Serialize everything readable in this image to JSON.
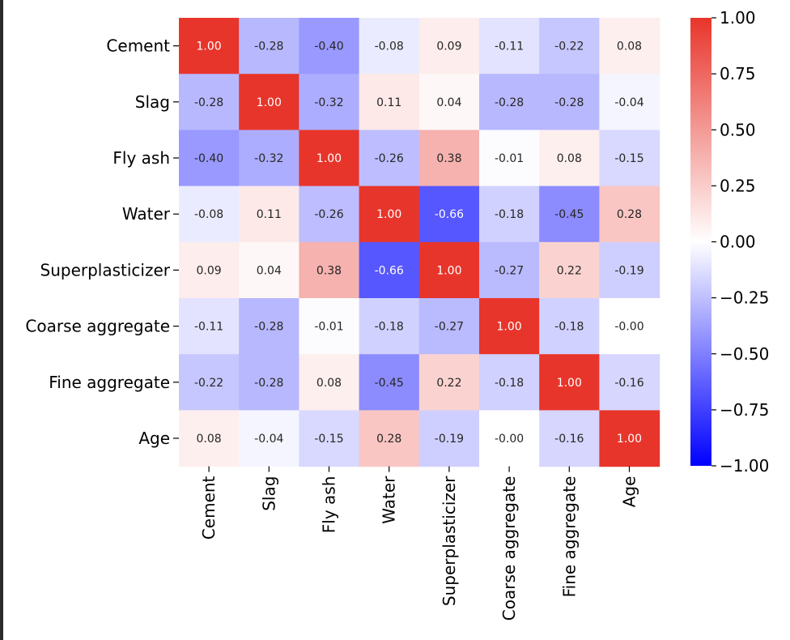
{
  "chart_data": {
    "type": "heatmap",
    "labels": [
      "Cement",
      "Slag",
      "Fly ash",
      "Water",
      "Superplasticizer",
      "Coarse aggregate",
      "Fine aggregate",
      "Age"
    ],
    "values": [
      [
        1.0,
        -0.28,
        -0.4,
        -0.08,
        0.09,
        -0.11,
        -0.22,
        0.08
      ],
      [
        -0.28,
        1.0,
        -0.32,
        0.11,
        0.04,
        -0.28,
        -0.28,
        -0.04
      ],
      [
        -0.4,
        -0.32,
        1.0,
        -0.26,
        0.38,
        -0.01,
        0.08,
        -0.15
      ],
      [
        -0.08,
        0.11,
        -0.26,
        1.0,
        -0.66,
        -0.18,
        -0.45,
        0.28
      ],
      [
        0.09,
        0.04,
        0.38,
        -0.66,
        1.0,
        -0.27,
        0.22,
        -0.19
      ],
      [
        -0.11,
        -0.28,
        -0.01,
        -0.18,
        -0.27,
        1.0,
        -0.18,
        -0.0
      ],
      [
        -0.22,
        -0.28,
        0.08,
        -0.45,
        0.22,
        -0.18,
        1.0,
        -0.16
      ],
      [
        0.08,
        -0.04,
        -0.15,
        0.28,
        -0.19,
        -0.0,
        -0.16,
        1.0
      ]
    ],
    "annotations": [
      [
        "1.00",
        "-0.28",
        "-0.40",
        "-0.08",
        "0.09",
        "-0.11",
        "-0.22",
        "0.08"
      ],
      [
        "-0.28",
        "1.00",
        "-0.32",
        "0.11",
        "0.04",
        "-0.28",
        "-0.28",
        "-0.04"
      ],
      [
        "-0.40",
        "-0.32",
        "1.00",
        "-0.26",
        "0.38",
        "-0.01",
        "0.08",
        "-0.15"
      ],
      [
        "-0.08",
        "0.11",
        "-0.26",
        "1.00",
        "-0.66",
        "-0.18",
        "-0.45",
        "0.28"
      ],
      [
        "0.09",
        "0.04",
        "0.38",
        "-0.66",
        "1.00",
        "-0.27",
        "0.22",
        "-0.19"
      ],
      [
        "-0.11",
        "-0.28",
        "-0.01",
        "-0.18",
        "-0.27",
        "1.00",
        "-0.18",
        "-0.00"
      ],
      [
        "-0.22",
        "-0.28",
        "0.08",
        "-0.45",
        "0.22",
        "-0.18",
        "1.00",
        "-0.16"
      ],
      [
        "0.08",
        "-0.04",
        "-0.15",
        "0.28",
        "-0.19",
        "-0.00",
        "-0.16",
        "1.00"
      ]
    ],
    "colormap": "bwr",
    "colors": {
      "low": "#0000ff",
      "mid": "#ffffff",
      "high": "#e8352b"
    },
    "vmin": -1.0,
    "vmax": 1.0,
    "colorbar_ticks": [
      "1.00",
      "0.75",
      "0.50",
      "0.25",
      "0.00",
      "−0.25",
      "−0.50",
      "−0.75",
      "−1.00"
    ],
    "colorbar_tick_values": [
      1.0,
      0.75,
      0.5,
      0.25,
      0.0,
      -0.25,
      -0.5,
      -0.75,
      -1.0
    ]
  }
}
